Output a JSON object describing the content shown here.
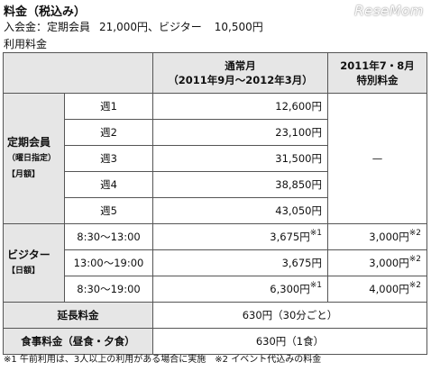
{
  "header": {
    "title": "料金（税込み）",
    "logo": "ReseMom",
    "admission_label": "入会金：定期会員",
    "admission_regular": "21,000円、",
    "admission_visitor_label": "ビジター",
    "admission_visitor": "10,500円",
    "usage_label": "利用料金"
  },
  "table": {
    "col_regular": [
      "通常月",
      "（2011年9月〜2012年3月）"
    ],
    "col_special": [
      "2011年7・8月",
      "特別料金"
    ],
    "member_group": {
      "title": "定期会員",
      "sub": "（曜日指定）",
      "period": "【月額】"
    },
    "member_rows": [
      {
        "label": "週1",
        "regular": "12,600円"
      },
      {
        "label": "週2",
        "regular": "23,100円"
      },
      {
        "label": "週3",
        "regular": "31,500円"
      },
      {
        "label": "週4",
        "regular": "38,850円"
      },
      {
        "label": "週5",
        "regular": "43,050円"
      }
    ],
    "member_special": "—",
    "visitor_group": {
      "title": "ビジター",
      "period": "【日額】"
    },
    "visitor_rows": [
      {
        "time": "8:30〜13:00",
        "regular": "3,675円",
        "regular_note": "※1",
        "special": "3,000円",
        "special_note": "※2"
      },
      {
        "time": "13:00〜19:00",
        "regular": "3,675円",
        "regular_note": "",
        "special": "3,000円",
        "special_note": "※2"
      },
      {
        "time": "8:30〜19:00",
        "regular": "6,300円",
        "regular_note": "※1",
        "special": "4,000円",
        "special_note": "※2"
      }
    ],
    "extension": {
      "label": "延長料金",
      "value": "630円（30分ごと）"
    },
    "meal": {
      "label": "食事料金（昼食・夕食）",
      "value": "630円（1食）"
    }
  },
  "footnote": "※1 午前利用は、3人以上の利用がある場合に実施　※2 イベント代込みの料金"
}
